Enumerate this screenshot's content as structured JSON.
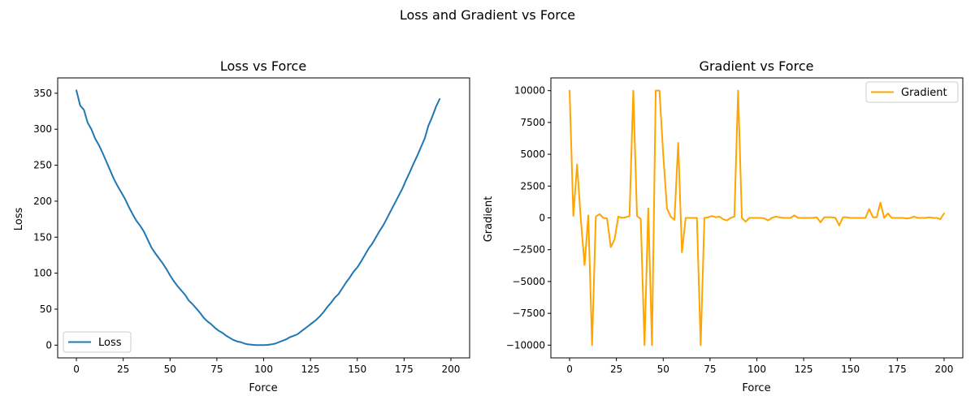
{
  "figure": {
    "suptitle": "Loss and Gradient vs Force"
  },
  "chart_data": [
    {
      "type": "line",
      "title": "Loss vs Force",
      "xlabel": "Force",
      "ylabel": "Loss",
      "xlim": [
        -10,
        210
      ],
      "ylim": [
        -17.7,
        371.3
      ],
      "xticks": [
        0,
        25,
        50,
        75,
        100,
        125,
        150,
        175,
        200
      ],
      "yticks": [
        0,
        50,
        100,
        150,
        200,
        250,
        300,
        350
      ],
      "grid": false,
      "legend_position": "lower-left",
      "series": [
        {
          "name": "Loss",
          "color": "#1f77b4",
          "x": [
            0,
            2,
            4,
            6,
            8,
            10,
            12,
            14,
            16,
            18,
            20,
            22,
            24,
            26,
            28,
            30,
            32,
            34,
            36,
            38,
            40,
            42,
            44,
            46,
            48,
            50,
            52,
            54,
            56,
            58,
            60,
            62,
            64,
            66,
            68,
            70,
            72,
            74,
            76,
            78,
            80,
            82,
            84,
            86,
            88,
            90,
            92,
            94,
            96,
            98,
            100,
            102,
            104,
            106,
            108,
            110,
            112,
            114,
            116,
            118,
            120,
            122,
            124,
            126,
            128,
            130,
            132,
            134,
            136,
            138,
            140,
            142,
            144,
            146,
            148,
            150,
            152,
            154,
            156,
            158,
            160,
            162,
            164,
            166,
            168,
            170,
            172,
            174,
            176,
            178,
            180,
            182,
            184,
            186,
            188,
            190,
            192,
            194,
            196,
            198,
            200
          ],
          "y": [
            354,
            333,
            327,
            309,
            300,
            287,
            278,
            267,
            255,
            243,
            231,
            221,
            212,
            203,
            192,
            182,
            173,
            166,
            158,
            147,
            136,
            128,
            121,
            114,
            106,
            97,
            89,
            82,
            76,
            70,
            62,
            57,
            51,
            45,
            38,
            33,
            29,
            24,
            20,
            17,
            13,
            10,
            7,
            5,
            4,
            2,
            1,
            0.5,
            0,
            0,
            0,
            0.3,
            1,
            2,
            4,
            6,
            8,
            11,
            13,
            15,
            19,
            23,
            27,
            31,
            35,
            40,
            46,
            53,
            59,
            66,
            71,
            79,
            87,
            94,
            102,
            108,
            116,
            125,
            134,
            141,
            150,
            159,
            167,
            177,
            187,
            197,
            207,
            217,
            229,
            240,
            252,
            263,
            275,
            287,
            305,
            317,
            331,
            342,
            null,
            null,
            null
          ]
        }
      ]
    },
    {
      "type": "line",
      "title": "Gradient vs Force",
      "xlabel": "Force",
      "ylabel": "Gradient",
      "xlim": [
        -10,
        210
      ],
      "ylim": [
        -11000,
        11000
      ],
      "xticks": [
        0,
        25,
        50,
        75,
        100,
        125,
        150,
        175,
        200
      ],
      "yticks": [
        -10000,
        -7500,
        -5000,
        -2500,
        0,
        2500,
        5000,
        7500,
        10000
      ],
      "grid": false,
      "legend_position": "top-right",
      "series": [
        {
          "name": "Gradient",
          "color": "#ffa500",
          "x": [
            0,
            2,
            4,
            6,
            8,
            10,
            12,
            14,
            16,
            18,
            20,
            22,
            24,
            26,
            28,
            30,
            32,
            34,
            36,
            38,
            40,
            42,
            44,
            46,
            48,
            50,
            52,
            54,
            56,
            58,
            60,
            62,
            64,
            66,
            68,
            70,
            72,
            74,
            76,
            78,
            80,
            82,
            84,
            86,
            88,
            90,
            92,
            94,
            96,
            98,
            100,
            102,
            104,
            106,
            108,
            110,
            112,
            114,
            116,
            118,
            120,
            122,
            124,
            126,
            128,
            130,
            132,
            134,
            136,
            138,
            140,
            142,
            144,
            146,
            148,
            150,
            152,
            154,
            156,
            158,
            160,
            162,
            164,
            166,
            168,
            170,
            172,
            174,
            176,
            178,
            180,
            182,
            184,
            186,
            188,
            190,
            192,
            194,
            196,
            198,
            200
          ],
          "y": [
            10000,
            150,
            4200,
            -150,
            -3700,
            200,
            -10000,
            100,
            300,
            0,
            -50,
            -2300,
            -1700,
            100,
            0,
            50,
            150,
            10000,
            150,
            -100,
            -10000,
            750,
            -10000,
            10000,
            10000,
            5000,
            750,
            100,
            -150,
            5900,
            -2700,
            0,
            0,
            0,
            0,
            -10000,
            0,
            50,
            150,
            50,
            100,
            -100,
            -200,
            0,
            100,
            10000,
            0,
            -300,
            0,
            0,
            0,
            0,
            -50,
            -200,
            0,
            100,
            50,
            0,
            0,
            0,
            200,
            0,
            0,
            0,
            0,
            0,
            50,
            -350,
            50,
            50,
            50,
            0,
            -600,
            50,
            50,
            0,
            0,
            0,
            0,
            0,
            700,
            50,
            50,
            1200,
            0,
            350,
            0,
            0,
            0,
            0,
            -50,
            0,
            100,
            0,
            0,
            0,
            50,
            0,
            0,
            -100,
            350
          ]
        }
      ]
    }
  ]
}
